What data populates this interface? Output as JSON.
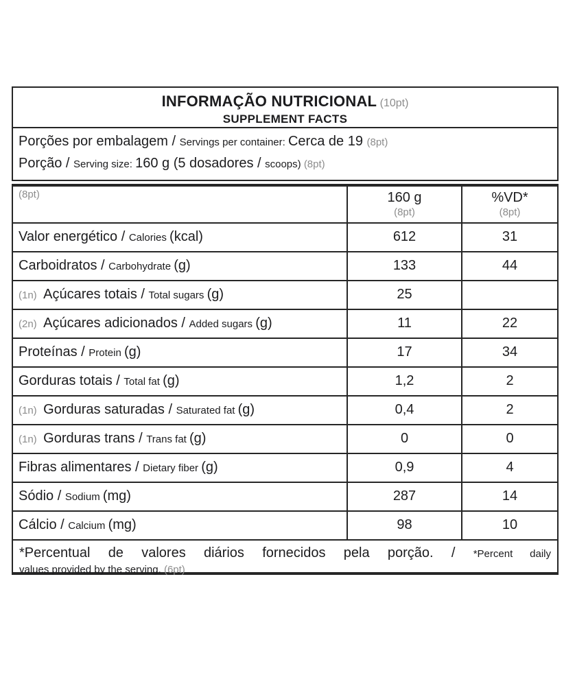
{
  "header": {
    "title_pt": "INFORMAÇÃO NUTRICIONAL",
    "title_note": "(10pt)",
    "title_en": "SUPPLEMENT FACTS",
    "lines": [
      {
        "segments": [
          {
            "t": "Porções por embalagem / ",
            "s": "pt"
          },
          {
            "t": "Servings per container: ",
            "s": "en"
          },
          {
            "t": "Cerca de 19 ",
            "s": "pt"
          },
          {
            "t": "(8pt)",
            "s": "note"
          }
        ]
      },
      {
        "segments": [
          {
            "t": "Porção / ",
            "s": "pt"
          },
          {
            "t": "Serving size: ",
            "s": "en"
          },
          {
            "t": "160 g (5 dosadores / ",
            "s": "pt"
          },
          {
            "t": "scoops) ",
            "s": "en"
          },
          {
            "t": "(8pt)",
            "s": "note"
          }
        ]
      }
    ]
  },
  "table": {
    "corner_note": "(8pt)",
    "columns": {
      "amount": "160 g",
      "amount_note": "(8pt)",
      "dv": "%VD*",
      "dv_note": "(8pt)"
    },
    "rows": [
      {
        "prefix": "",
        "pt": "Valor energético / ",
        "en": "Calories ",
        "unit": "(kcal)",
        "amount": "612",
        "dv": "31"
      },
      {
        "prefix": "",
        "pt": "Carboidratos / ",
        "en": "Carbohydrate ",
        "unit": "(g)",
        "amount": "133",
        "dv": "44"
      },
      {
        "prefix": "(1n)",
        "pt": "Açúcares totais / ",
        "en": "Total sugars ",
        "unit": "(g)",
        "amount": "25",
        "dv": ""
      },
      {
        "prefix": "(2n)",
        "pt": "Açúcares adicionados / ",
        "en": "Added sugars ",
        "unit": "(g)",
        "amount": "11",
        "dv": "22"
      },
      {
        "prefix": "",
        "pt": "Proteínas / ",
        "en": "Protein ",
        "unit": "(g)",
        "amount": "17",
        "dv": "34"
      },
      {
        "prefix": "",
        "pt": "Gorduras totais / ",
        "en": "Total fat ",
        "unit": "(g)",
        "amount": "1,2",
        "dv": "2"
      },
      {
        "prefix": "(1n)",
        "pt": "Gorduras saturadas / ",
        "en": "Saturated fat ",
        "unit": "(g)",
        "amount": "0,4",
        "dv": "2"
      },
      {
        "prefix": "(1n)",
        "pt": "Gorduras trans / ",
        "en": "Trans fat ",
        "unit": "(g)",
        "amount": "0",
        "dv": "0"
      },
      {
        "prefix": "",
        "pt": "Fibras alimentares / ",
        "en": "Dietary fiber ",
        "unit": "(g)",
        "amount": "0,9",
        "dv": "4"
      },
      {
        "prefix": "",
        "pt": "Sódio / ",
        "en": "Sodium ",
        "unit": "(mg)",
        "amount": "287",
        "dv": "14"
      },
      {
        "prefix": "",
        "pt": "Cálcio / ",
        "en": "Calcium ",
        "unit": "(mg)",
        "amount": "98",
        "dv": "10"
      }
    ],
    "footnote": {
      "pt": "*Percentual de valores diários fornecidos pela porção. / ",
      "en_line1": "*Percent daily",
      "line2": "values provided by the serving. ",
      "note": "(6pt)"
    }
  },
  "colors": {
    "text": "#1c1c1e",
    "muted": "#8c8c8c",
    "border": "#262626",
    "background": "#ffffff"
  }
}
